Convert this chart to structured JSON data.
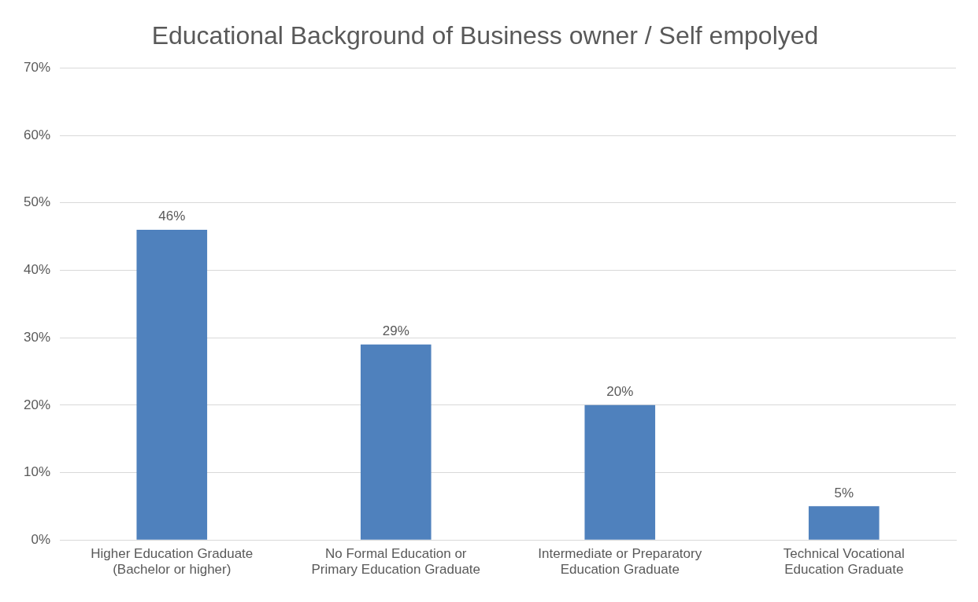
{
  "chart_data": {
    "type": "bar",
    "title": "Educational Background of Business owner / Self empolyed",
    "categories": [
      "Higher Education Graduate (Bachelor or higher)",
      "No Formal Education or Primary Education Graduate",
      "Intermediate or Preparatory Education Graduate",
      "Technical Vocational Education Graduate"
    ],
    "values": [
      46,
      29,
      20,
      5
    ],
    "color": "#4f81bd",
    "value_labels": [
      "46%",
      "29%",
      "20%",
      "5%"
    ],
    "ylim": [
      0,
      70
    ],
    "yticks": [
      {
        "value": 0,
        "label": "0%"
      },
      {
        "value": 10,
        "label": "10%"
      },
      {
        "value": 20,
        "label": "20%"
      },
      {
        "value": 30,
        "label": "30%"
      },
      {
        "value": 40,
        "label": "40%"
      },
      {
        "value": 50,
        "label": "50%"
      },
      {
        "value": 60,
        "label": "60%"
      },
      {
        "value": 70,
        "label": "70%"
      }
    ],
    "grid": "y",
    "legend": false
  }
}
